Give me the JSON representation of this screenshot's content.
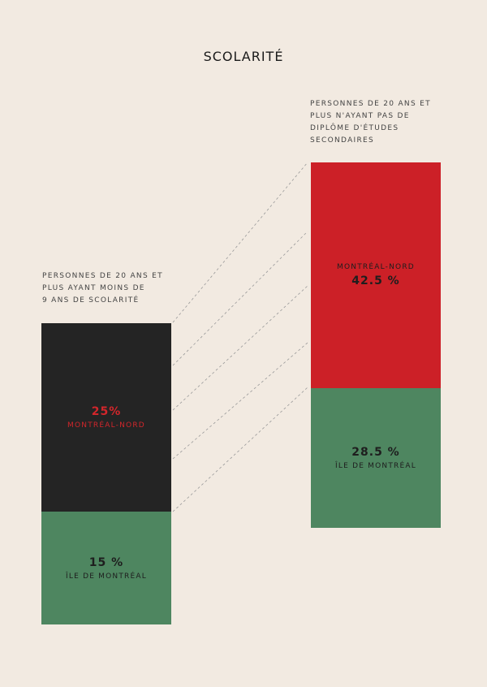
{
  "chart_data": {
    "type": "bar",
    "title": "SCOLARITÉ",
    "colors": {
      "background": "#f2eae1",
      "montreal_nord_9ans": "#242424",
      "montreal_nord_diplome": "#cc2027",
      "ile_de_montreal": "#4e8660",
      "label_red": "#d2262b"
    },
    "bars": [
      {
        "caption": "PERSONNES DE 20 ANS ET\nPLUS AYANT MOINS DE\n9 ANS DE SCOLARITÉ",
        "segments": [
          {
            "name": "MONTRÉAL-NORD",
            "value": 25,
            "label": "25%"
          },
          {
            "name": "ÎLE DE MONTRÉAL",
            "value": 15,
            "label": "15 %"
          }
        ]
      },
      {
        "caption": "PERSONNES DE 20 ANS ET\nPLUS N'AYANT PAS DE\nDIPLÔME D'ÉTUDES\nSECONDAIRES",
        "segments": [
          {
            "name": "MONTRÉAL-NORD",
            "value": 42.5,
            "label": "42.5 %"
          },
          {
            "name": "ÎLE DE MONTRÉAL",
            "value": 28.5,
            "label": "28.5 %"
          }
        ]
      }
    ]
  }
}
